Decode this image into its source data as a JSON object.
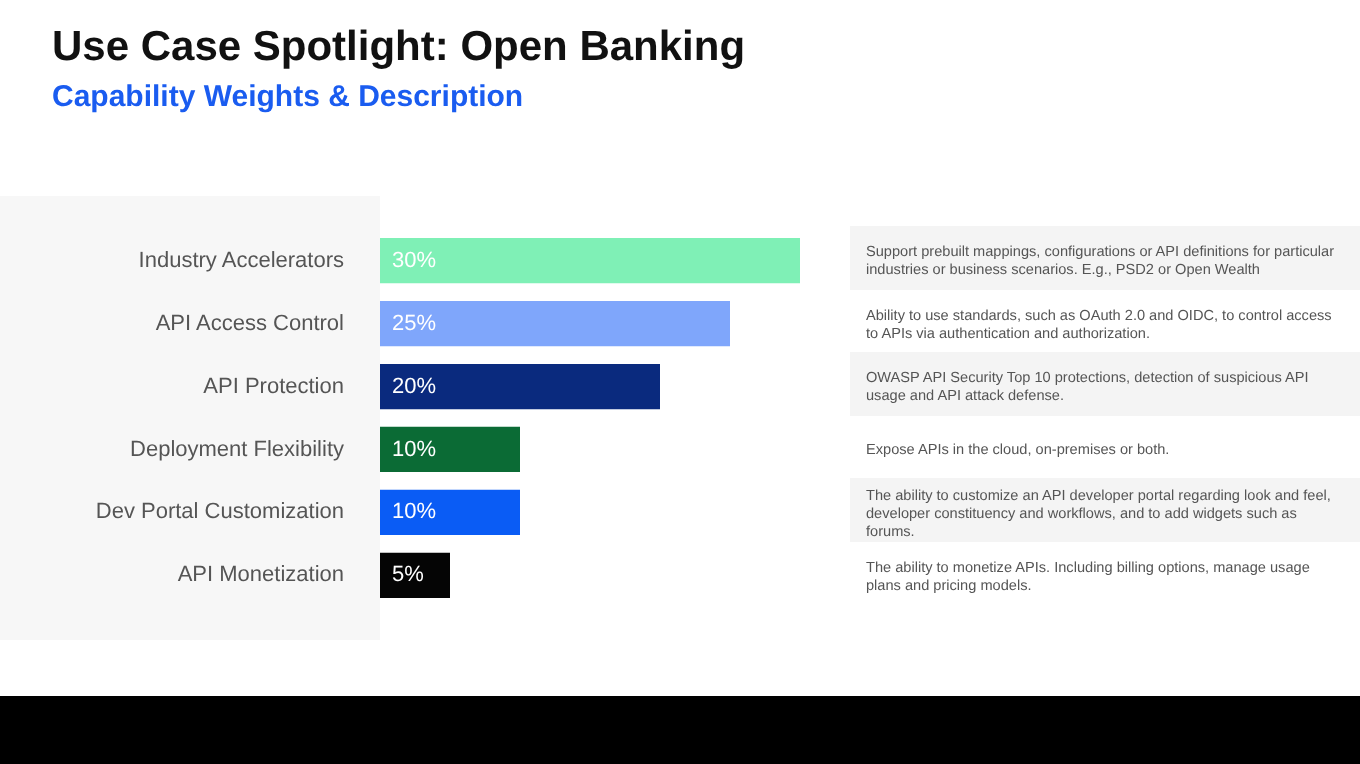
{
  "chart_data": {
    "type": "bar",
    "orientation": "horizontal",
    "title": "Use Case Spotlight: Open Banking",
    "subtitle": "Capability Weights & Description",
    "categories": [
      "Industry Accelerators",
      "API Access Control",
      "API Protection",
      "Deployment Flexibility",
      "Dev Portal Customization",
      "API Monetization"
    ],
    "values": [
      30,
      25,
      20,
      10,
      10,
      5
    ],
    "colors": [
      "#7ff0b6",
      "#7fa6fb",
      "#0a2a7e",
      "#0b6b35",
      "#0a5cf5",
      "#050505"
    ],
    "value_labels": [
      "30%",
      "25%",
      "20%",
      "10%",
      "10%",
      "5%"
    ],
    "xlim": [
      0,
      30
    ],
    "tick_labels": "y",
    "grid": false,
    "legend": false,
    "annotations": [
      "Support prebuilt mappings, configurations or API definitions for particular industries or business scenarios. E.g., PSD2 or Open Wealth",
      "Ability to use standards, such as OAuth 2.0 and OIDC, to control access to APIs via authentication and authorization.",
      "OWASP API Security Top 10 protections, detection of suspicious API usage and API attack defense.",
      "Expose APIs in the cloud, on-premises or both.",
      "The ability to customize an API developer portal regarding look and feel, developer constituency and workflows, and to add widgets such as forums.",
      "The ability to monetize APIs. Including billing options, manage usage plans and pricing models."
    ]
  }
}
